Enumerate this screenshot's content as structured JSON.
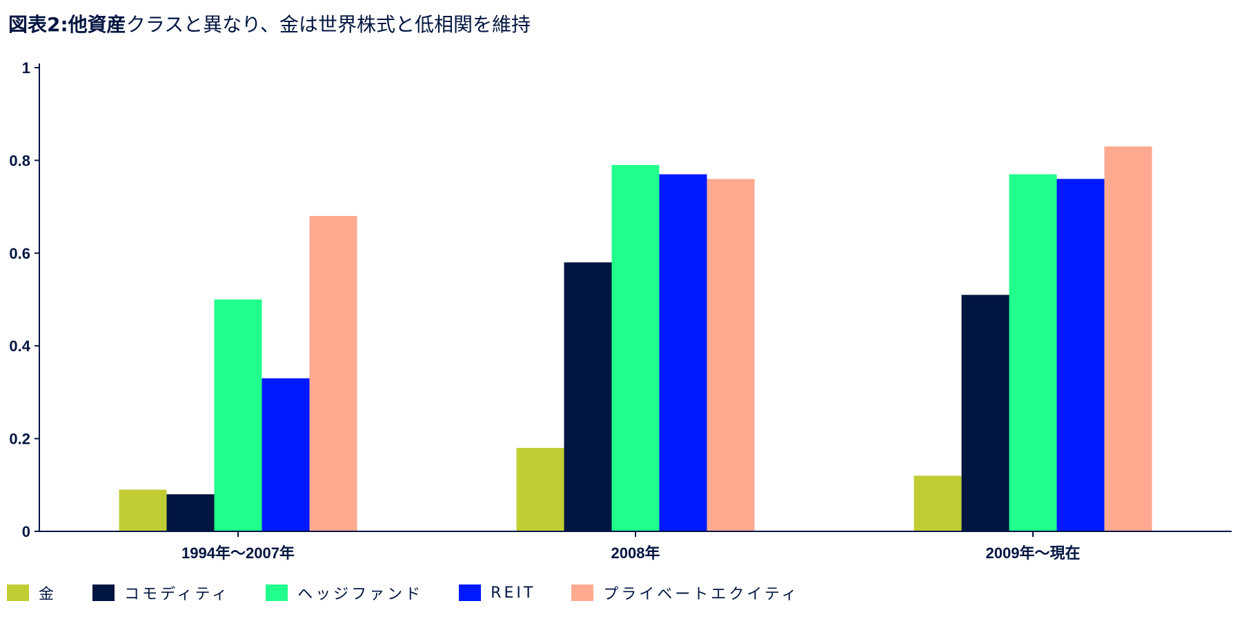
{
  "title": {
    "bold": "図表2:他資産",
    "rest": "クラスと異なり、金は世界株式と低相関を維持"
  },
  "chart_data": {
    "type": "bar",
    "categories": [
      "1994年〜2007年",
      "2008年",
      "2009年〜現在"
    ],
    "series": [
      {
        "name": "金",
        "color": "#C2CD34",
        "values": [
          0.09,
          0.18,
          0.12
        ]
      },
      {
        "name": "コモディティ",
        "color": "#001540",
        "values": [
          0.08,
          0.58,
          0.51
        ]
      },
      {
        "name": "ヘッジファンド",
        "color": "#21FF8C",
        "values": [
          0.5,
          0.79,
          0.77
        ]
      },
      {
        "name": "REIT",
        "color": "#0019FF",
        "values": [
          0.33,
          0.77,
          0.76
        ]
      },
      {
        "name": "プライベートエクイティ",
        "color": "#FFAA90",
        "values": [
          0.68,
          0.76,
          0.83
        ]
      }
    ],
    "y_ticks": [
      "0",
      "0.2",
      "0.4",
      "0.6",
      "0.8",
      "1"
    ],
    "ylim": [
      0,
      1
    ],
    "grid": false,
    "legend_position": "bottom-left"
  }
}
